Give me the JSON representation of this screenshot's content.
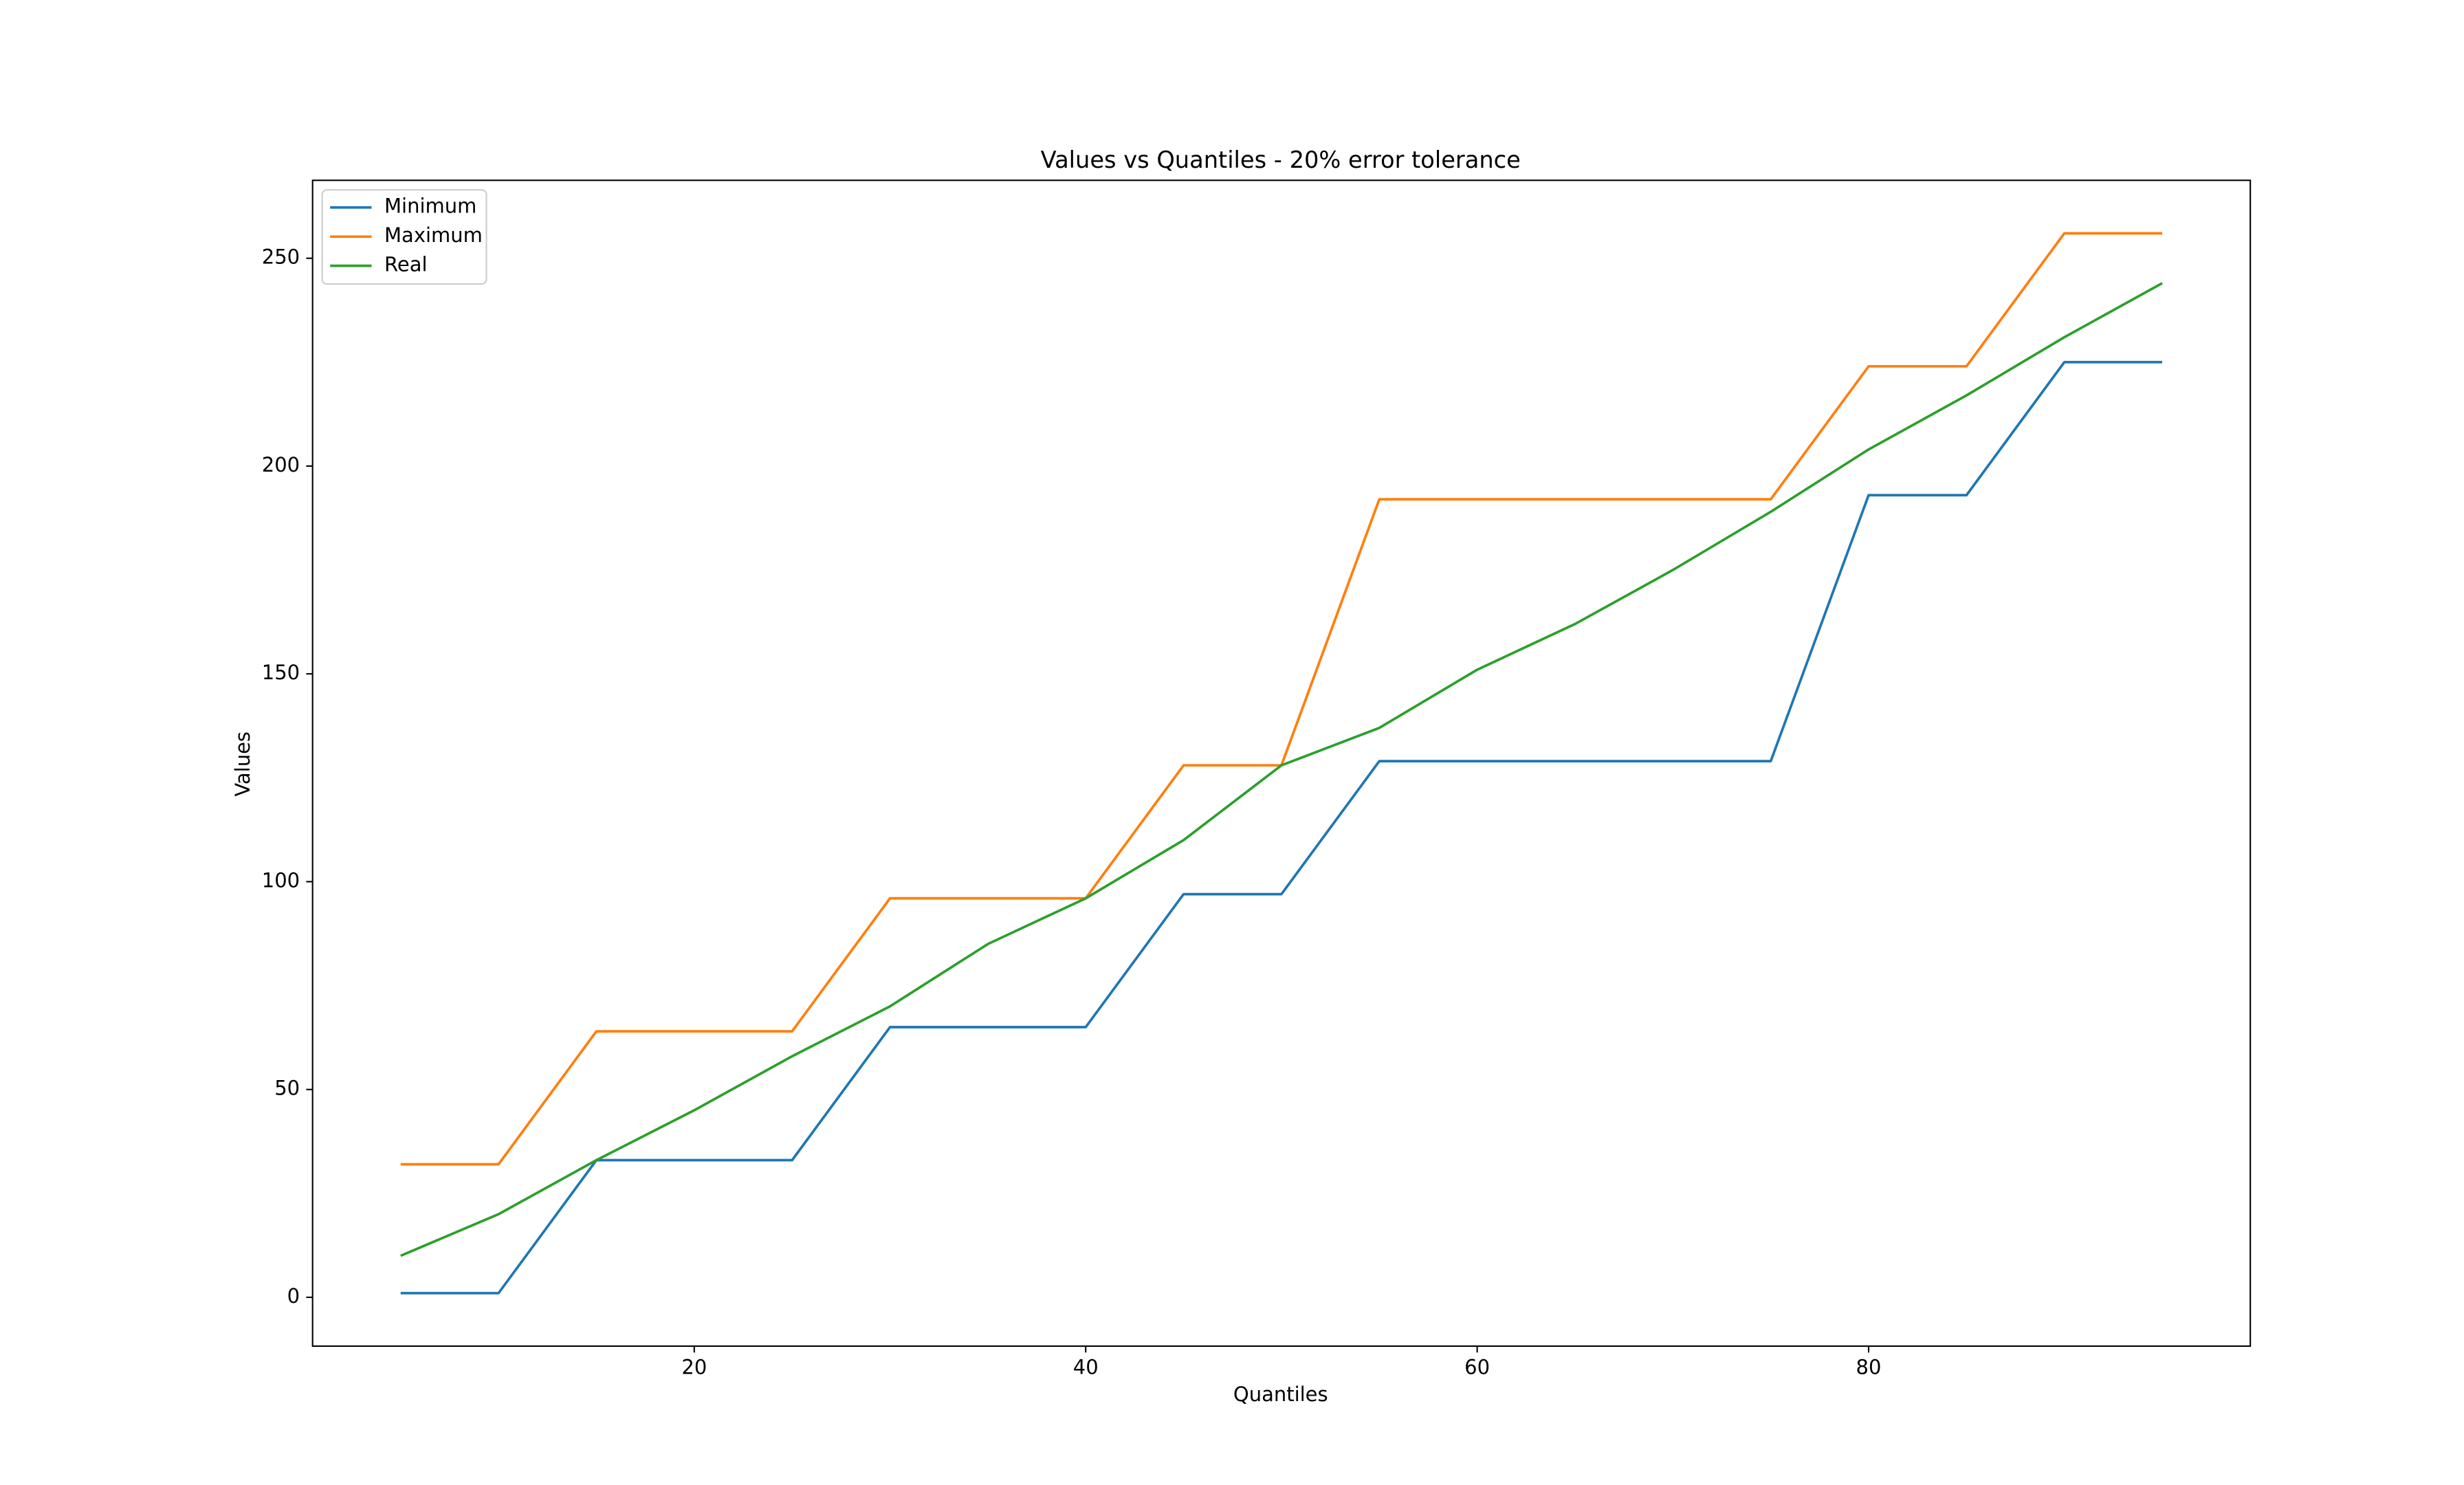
{
  "chart_data": {
    "type": "line",
    "title": "Values vs Quantiles - 20% error tolerance",
    "x_label": "Quantiles",
    "y_label": "Values",
    "x": [
      5,
      10,
      15,
      20,
      25,
      30,
      35,
      40,
      45,
      50,
      55,
      60,
      65,
      70,
      75,
      80,
      85,
      90,
      95
    ],
    "series": [
      {
        "name": "Minimum",
        "color": "#1f77b4",
        "values": [
          1,
          1,
          33,
          33,
          33,
          65,
          65,
          65,
          97,
          97,
          129,
          129,
          129,
          129,
          129,
          193,
          193,
          225,
          225
        ]
      },
      {
        "name": "Maximum",
        "color": "#ff7f0e",
        "values": [
          32,
          32,
          64,
          64,
          64,
          96,
          96,
          96,
          128,
          128,
          192,
          192,
          192,
          192,
          192,
          224,
          224,
          256,
          256
        ]
      },
      {
        "name": "Real",
        "color": "#2ca02c",
        "values": [
          10,
          20,
          33,
          45,
          58,
          70,
          85,
          96,
          110,
          128,
          137,
          151,
          162,
          175,
          189,
          204,
          217,
          231,
          244
        ]
      }
    ],
    "xlim": [
      0.5,
      99.5
    ],
    "xticks": [
      20,
      40,
      60,
      80
    ],
    "ylim": [
      -11.75,
      268.75
    ],
    "yticks": [
      0,
      50,
      100,
      150,
      200,
      250
    ],
    "grid": false,
    "legend": "upper left"
  }
}
